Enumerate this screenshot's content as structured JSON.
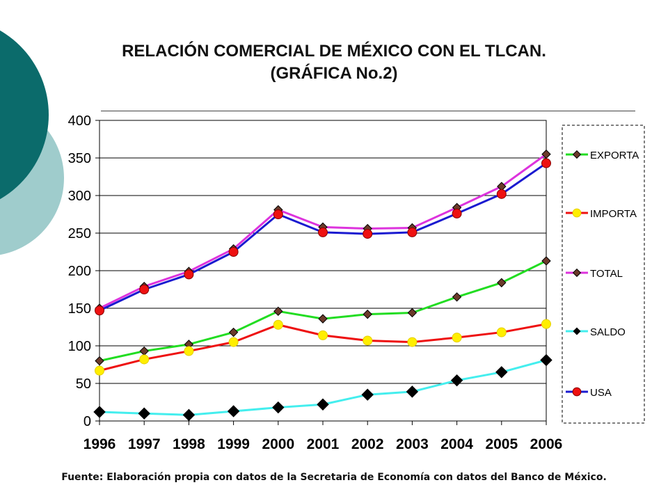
{
  "colors": {
    "deco_dark": "#0b6b6b",
    "deco_light": "#9fcccc",
    "exporta": "#22dd22",
    "importa": "#ee1111",
    "total": "#dd33dd",
    "saldo": "#44eeee",
    "usa": "#1a1ad0",
    "marker_diamond": "#6b3a2a",
    "marker_yellow": "#ffee00",
    "marker_red": "#ee1111",
    "marker_black": "#000000"
  },
  "chart_data": {
    "type": "line",
    "title": "RELACIÓN COMERCIAL DE MÉXICO CON EL TLCAN.",
    "subtitle": "(GRÁFICA No.2)",
    "categories": [
      "1996",
      "1997",
      "1998",
      "1999",
      "2000",
      "2001",
      "2002",
      "2003",
      "2004",
      "2005",
      "2006"
    ],
    "ylim": [
      0,
      400
    ],
    "yticks": [
      "0",
      "50",
      "100",
      "150",
      "200",
      "250",
      "300",
      "350",
      "400"
    ],
    "grid": true,
    "legend_position": "right",
    "series": [
      {
        "name": "EXPORTA",
        "color": "#22dd22",
        "marker": "diamond-brown",
        "values": [
          80,
          93,
          102,
          118,
          146,
          136,
          142,
          144,
          165,
          184,
          213
        ]
      },
      {
        "name": "IMPORTA",
        "color": "#ee1111",
        "marker": "circle-yellow",
        "values": [
          67,
          82,
          93,
          105,
          128,
          114,
          107,
          105,
          111,
          118,
          129
        ]
      },
      {
        "name": "TOTAL",
        "color": "#dd33dd",
        "marker": "diamond-brown",
        "values": [
          150,
          179,
          199,
          229,
          281,
          258,
          256,
          257,
          284,
          312,
          355
        ]
      },
      {
        "name": "SALDO",
        "color": "#44eeee",
        "marker": "diamond-black",
        "values": [
          12,
          10,
          8,
          13,
          18,
          22,
          35,
          39,
          54,
          65,
          81
        ]
      },
      {
        "name": "USA",
        "color": "#1a1ad0",
        "marker": "circle-red",
        "values": [
          147,
          175,
          195,
          225,
          275,
          251,
          249,
          251,
          276,
          302,
          343
        ]
      }
    ]
  },
  "footer": "Fuente: Elaboración propia con datos de la Secretaria de Economía con datos del Banco de México."
}
